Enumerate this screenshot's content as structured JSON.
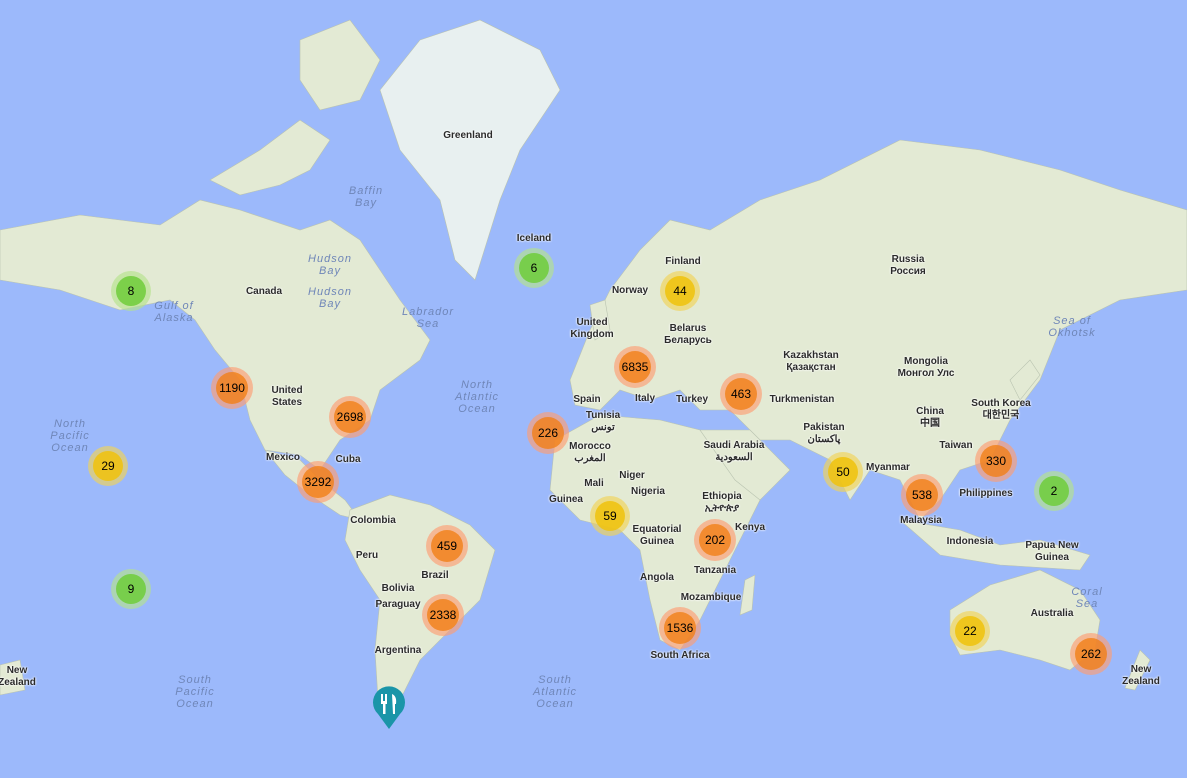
{
  "map": {
    "labels": {
      "greenland": "Greenland",
      "baffin": "Baffin\nBay",
      "hudson1": "Hudson\nBay",
      "hudson2": "Hudson\nBay",
      "canada": "Canada",
      "alaska": "Gulf of\nAlaska",
      "labrador": "Labrador\nSea",
      "us": "United\nStates",
      "mexico": "Mexico",
      "cuba": "Cuba",
      "natl": "North\nAtlantic\nOcean",
      "npac": "North\nPacific\nOcean",
      "colombia": "Colombia",
      "peru": "Peru",
      "brazil": "Brazil",
      "bolivia": "Bolivia",
      "paraguay": "Paraguay",
      "argentina": "Argentina",
      "spac": "South\nPacific\nOcean",
      "satl": "South\nAtlantic\nOcean",
      "nz_left": "New\nZealand",
      "iceland": "Iceland",
      "norway": "Norway",
      "finland": "Finland",
      "uk": "United\nKingdom",
      "belarus": "Belarus\nБеларусь",
      "spain": "Spain",
      "italy": "Italy",
      "tunisia": "Tunisia\nتونس",
      "morocco": "Morocco\nالمغرب",
      "turkey": "Turkey",
      "turkmenistan": "Turkmenistan",
      "kazakhstan": "Kazakhstan\nҚазақстан",
      "russia": "Russia\nРоссия",
      "mongolia": "Mongolia\nМонгол Улс",
      "china": "China\n中国",
      "skorea": "South Korea\n대한민국",
      "pakistan": "Pakistan\nپاکستان",
      "saudi": "Saudi Arabia\nالسعودية",
      "mali": "Mali",
      "niger": "Niger",
      "nigeria": "Nigeria",
      "guinea": "Guinea",
      "eqguinea": "Equatorial\nGuinea",
      "ethiopia": "Ethiopia\nኢትዮጵያ",
      "kenya": "Kenya",
      "tanzania": "Tanzania",
      "angola": "Angola",
      "mozambique": "Mozambique",
      "safrica": "South Africa",
      "myanmar": "Myanmar",
      "philippines": "Philippines",
      "malaysia": "Malaysia",
      "indonesia": "Indonesia",
      "png": "Papua New\nGuinea",
      "australia": "Australia",
      "coral": "Coral\nSea",
      "nz": "New\nZealand",
      "okhotsk": "Sea of\nOkhotsk",
      "taiwan": "Taiwan"
    },
    "clusters": [
      {
        "count": "8",
        "level": "small"
      },
      {
        "count": "6",
        "level": "small"
      },
      {
        "count": "44",
        "level": "medium"
      },
      {
        "count": "1190",
        "level": "large"
      },
      {
        "count": "2698",
        "level": "large"
      },
      {
        "count": "6835",
        "level": "large"
      },
      {
        "count": "463",
        "level": "large"
      },
      {
        "count": "226",
        "level": "large"
      },
      {
        "count": "29",
        "level": "medium"
      },
      {
        "count": "3292",
        "level": "large"
      },
      {
        "count": "50",
        "level": "medium"
      },
      {
        "count": "330",
        "level": "large"
      },
      {
        "count": "538",
        "level": "large"
      },
      {
        "count": "2",
        "level": "small"
      },
      {
        "count": "59",
        "level": "medium"
      },
      {
        "count": "202",
        "level": "large"
      },
      {
        "count": "459",
        "level": "large"
      },
      {
        "count": "9",
        "level": "small"
      },
      {
        "count": "2338",
        "level": "large"
      },
      {
        "count": "1536",
        "level": "large"
      },
      {
        "count": "22",
        "level": "medium"
      },
      {
        "count": "262",
        "level": "large"
      }
    ],
    "marker": {
      "icon": "restaurant-fork-knife-icon",
      "color": "#1a95a8"
    },
    "colors": {
      "water": "#9cb9fb",
      "land": "#e6ecd8",
      "small": "#6ecc39",
      "medium": "#f0c20c",
      "large": "#f18017"
    }
  }
}
